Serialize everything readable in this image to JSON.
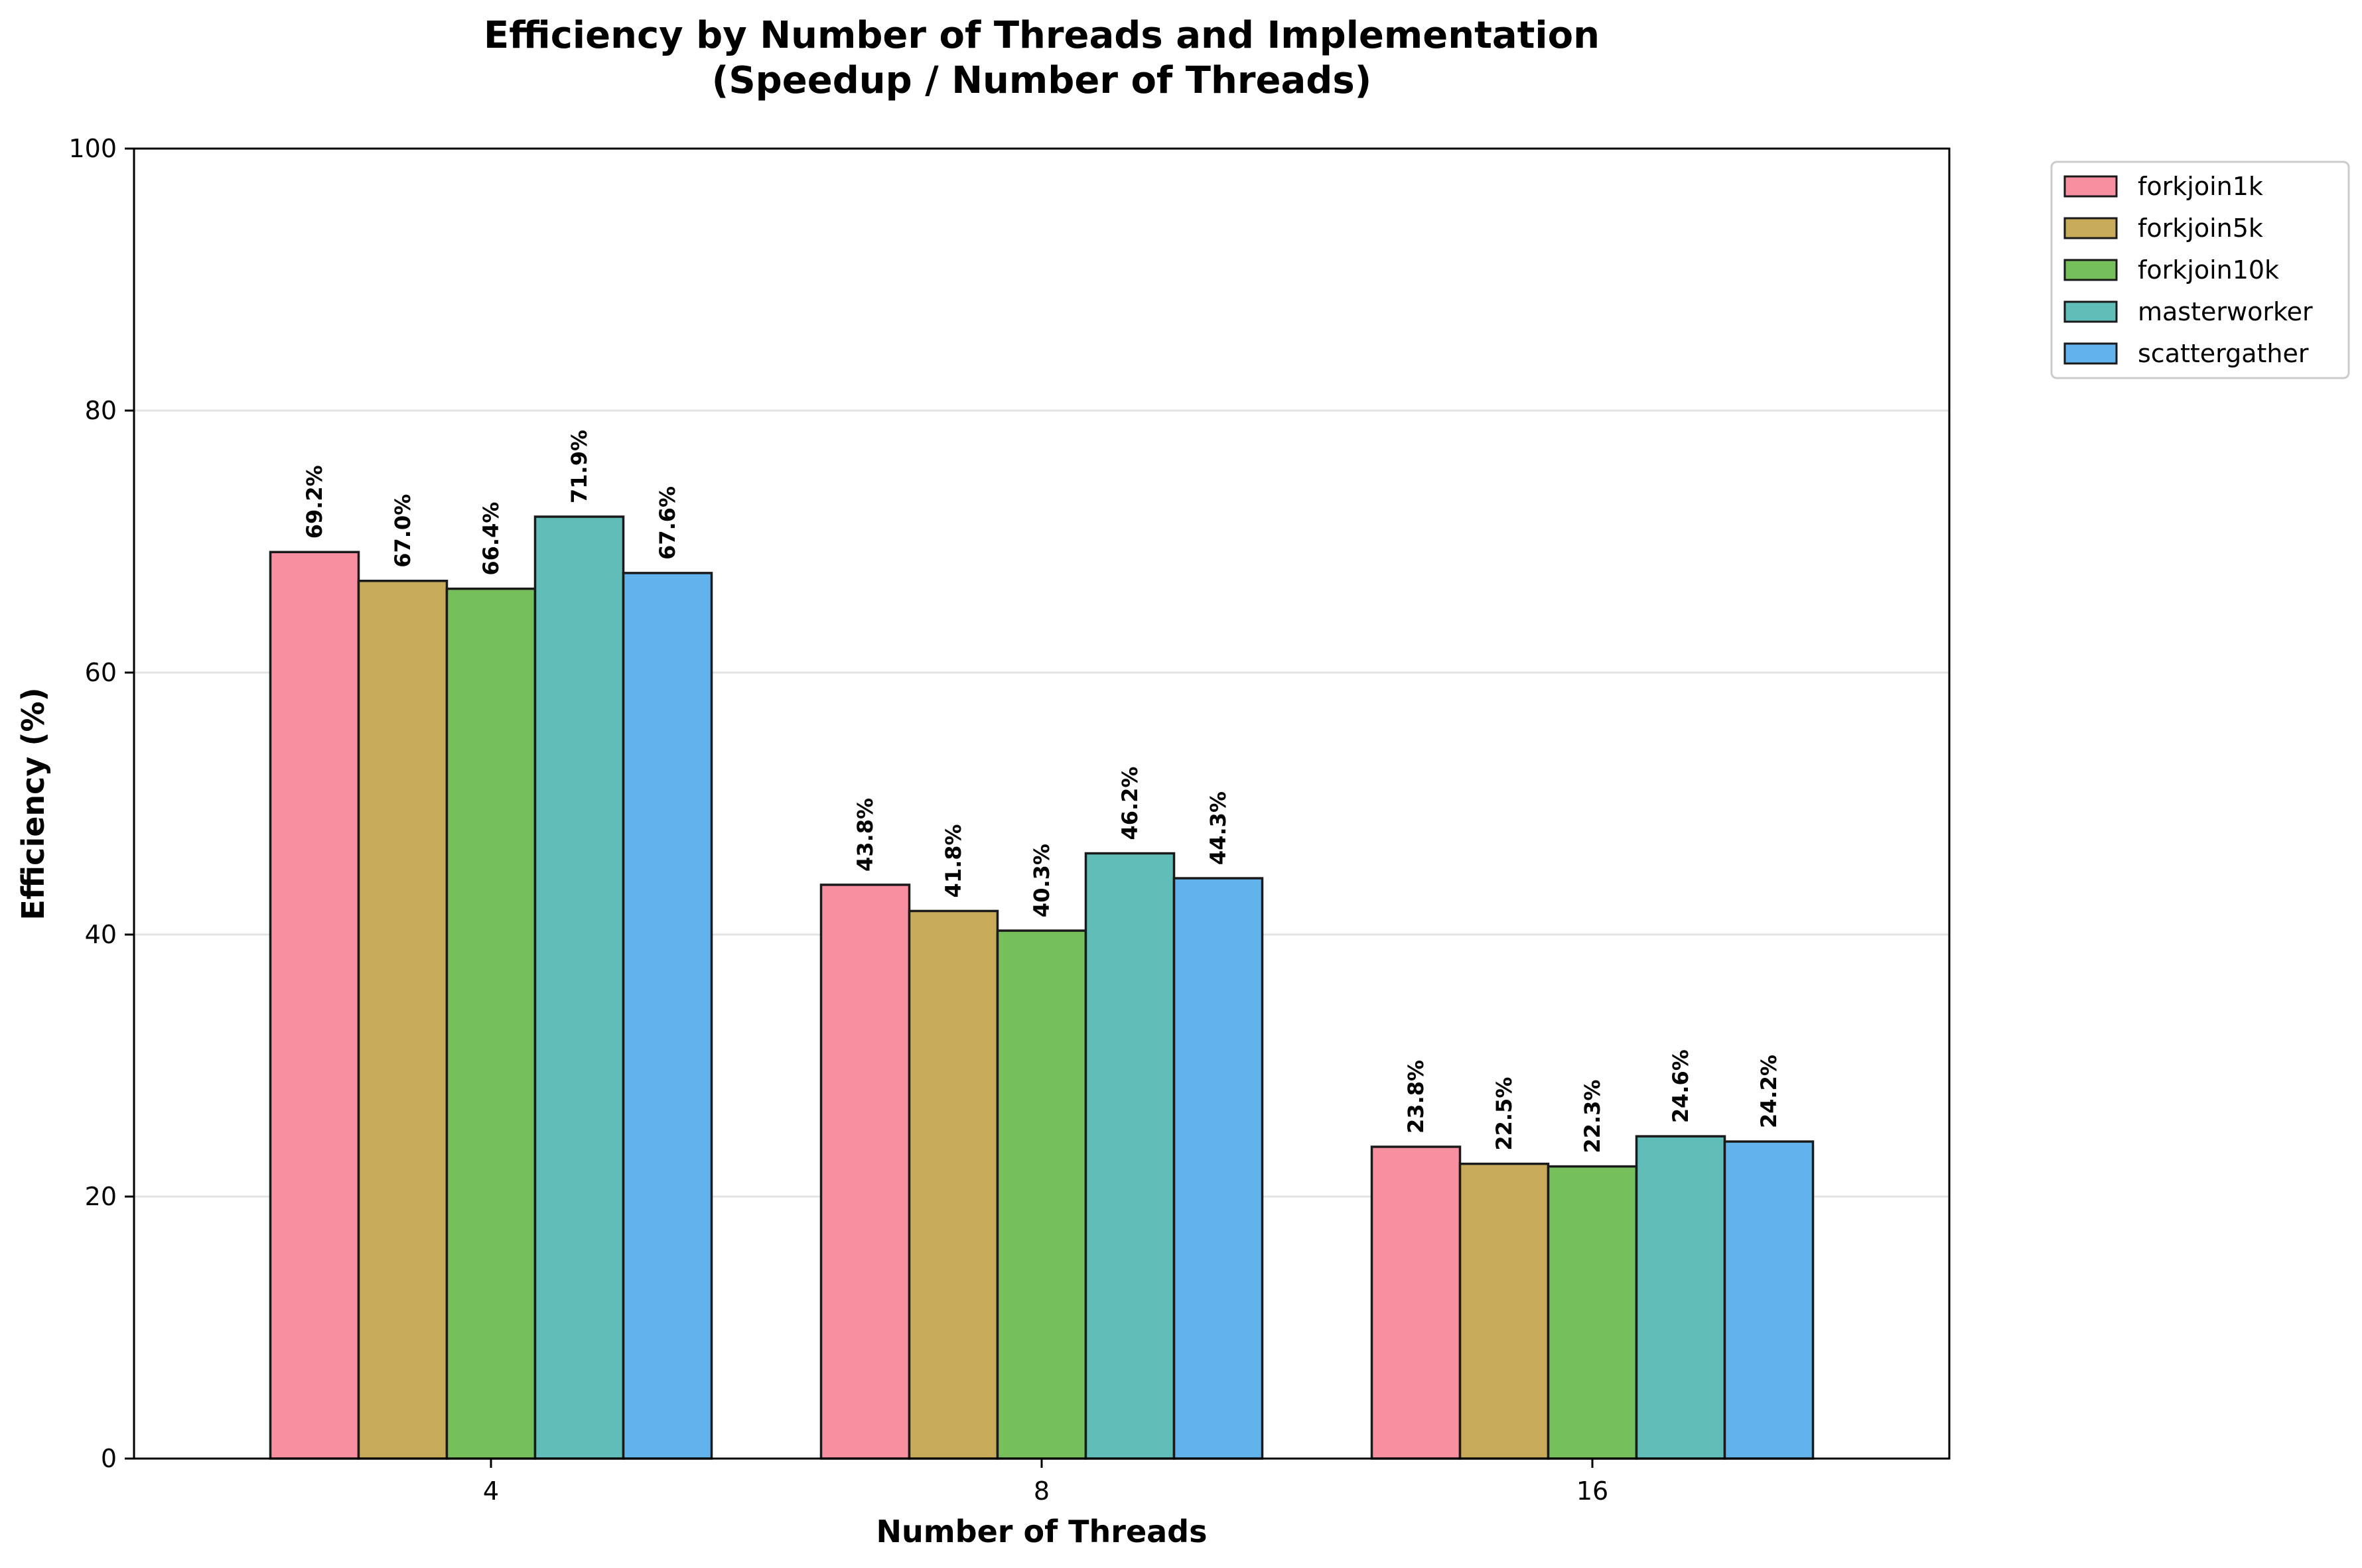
{
  "chart_data": {
    "type": "bar",
    "title_line1": "Efficiency by Number of Threads and Implementation",
    "title_line2": "(Speedup / Number of Threads)",
    "xlabel": "Number of Threads",
    "ylabel": "Efficiency (%)",
    "categories": [
      "4",
      "8",
      "16"
    ],
    "ylim": [
      0,
      100
    ],
    "yticks": [
      0,
      20,
      40,
      60,
      80,
      100
    ],
    "ytick_labels": [
      "0",
      "20",
      "40",
      "60",
      "80",
      "100"
    ],
    "grid": "y",
    "legend_position": "outside-top-right",
    "series": [
      {
        "name": "forkjoin1k",
        "color": "#f78fa0",
        "values": [
          69.2,
          43.8,
          23.8
        ],
        "labels": [
          "69.2%",
          "43.8%",
          "23.8%"
        ]
      },
      {
        "name": "forkjoin5k",
        "color": "#c7aa5a",
        "values": [
          67.0,
          41.8,
          22.5
        ],
        "labels": [
          "67.0%",
          "41.8%",
          "22.5%"
        ]
      },
      {
        "name": "forkjoin10k",
        "color": "#75c05a",
        "values": [
          66.4,
          40.3,
          22.3
        ],
        "labels": [
          "66.4%",
          "40.3%",
          "22.3%"
        ]
      },
      {
        "name": "masterworker",
        "color": "#60bdb8",
        "values": [
          71.9,
          46.2,
          24.6
        ],
        "labels": [
          "71.9%",
          "46.2%",
          "24.6%"
        ]
      },
      {
        "name": "scattergather",
        "color": "#62b3ec",
        "values": [
          67.6,
          44.3,
          24.2
        ],
        "labels": [
          "67.6%",
          "44.3%",
          "24.2%"
        ]
      }
    ]
  }
}
